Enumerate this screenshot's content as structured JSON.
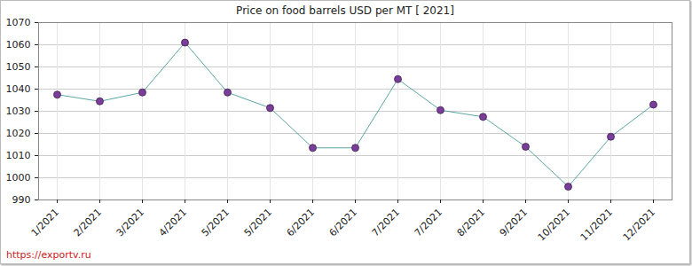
{
  "chart_data": {
    "type": "line",
    "title": "Price on food barrels USD per MT [ 2021]",
    "caption": "https://exportv.ru",
    "categories": [
      "1/2021",
      "2/2021",
      "3/2021",
      "4/2021",
      "5/2021",
      "5/2021",
      "6/2021",
      "6/2021",
      "7/2021",
      "7/2021",
      "8/2021",
      "9/2021",
      "10/2021",
      "11/2021",
      "12/2021"
    ],
    "values": [
      1037.5,
      1034.5,
      1038.5,
      1061,
      1038.5,
      1031.5,
      1013.5,
      1013.5,
      1044.5,
      1030.5,
      1027.5,
      1014,
      996,
      1018.5,
      1033
    ],
    "color": "#2f8f8a",
    "marker": "circle",
    "marker_color": "#7a3d9a",
    "ylim": [
      990,
      1070
    ],
    "yticks": [
      990,
      1000,
      1010,
      1020,
      1030,
      1040,
      1050,
      1060,
      1070
    ],
    "grid": true
  }
}
